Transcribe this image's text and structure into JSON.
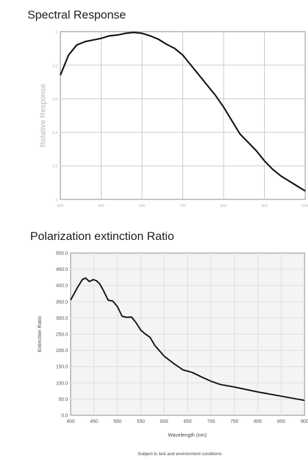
{
  "chart_data": [
    {
      "type": "line",
      "title": "Spectral Response",
      "ylabel": "Relative Response",
      "xlabel": "",
      "xlim": [
        400,
        1000
      ],
      "ylim": [
        0,
        1.0
      ],
      "x_ticks": [
        400,
        500,
        600,
        700,
        800,
        900,
        1000
      ],
      "y_ticks": [
        0,
        0.2,
        0.4,
        0.6,
        0.8,
        1.0
      ],
      "grid": true,
      "series": [
        {
          "x": [
            400,
            420,
            440,
            460,
            480,
            500,
            520,
            540,
            560,
            580,
            600,
            620,
            640,
            660,
            680,
            700,
            720,
            740,
            760,
            780,
            800,
            820,
            840,
            860,
            880,
            900,
            920,
            940,
            960,
            980,
            1000
          ],
          "y": [
            0.74,
            0.86,
            0.92,
            0.94,
            0.95,
            0.96,
            0.975,
            0.98,
            0.99,
            0.995,
            0.99,
            0.975,
            0.955,
            0.925,
            0.9,
            0.86,
            0.8,
            0.74,
            0.68,
            0.62,
            0.55,
            0.47,
            0.39,
            0.34,
            0.29,
            0.23,
            0.18,
            0.14,
            0.11,
            0.08,
            0.05
          ]
        }
      ]
    },
    {
      "type": "line",
      "title": "Polarization extinction Ratio",
      "xlabel": "Wavelength (nm)",
      "ylabel": "Extinction Ratio",
      "xlim": [
        400,
        900
      ],
      "ylim": [
        0,
        500
      ],
      "x_ticks": [
        "400",
        "450",
        "500",
        "550",
        "600",
        "650",
        "700",
        "750",
        "800",
        "850",
        "900"
      ],
      "y_ticks": [
        "0.0",
        "50.0",
        "100.0",
        "150.0",
        "200.0",
        "250.0",
        "300.0",
        "350.0",
        "400.0",
        "450.0",
        "500.0"
      ],
      "grid": true,
      "series": [
        {
          "x": [
            400,
            415,
            425,
            432,
            440,
            448,
            455,
            462,
            470,
            480,
            490,
            500,
            510,
            520,
            530,
            540,
            550,
            560,
            570,
            580,
            600,
            620,
            640,
            660,
            680,
            700,
            720,
            750,
            800,
            850,
            900
          ],
          "y": [
            355,
            395,
            418,
            423,
            412,
            418,
            415,
            405,
            385,
            355,
            352,
            335,
            305,
            302,
            303,
            285,
            262,
            250,
            240,
            215,
            182,
            160,
            140,
            132,
            118,
            105,
            95,
            87,
            72,
            59,
            46
          ]
        }
      ]
    }
  ],
  "footnote": "Subject to test and environment conditions"
}
